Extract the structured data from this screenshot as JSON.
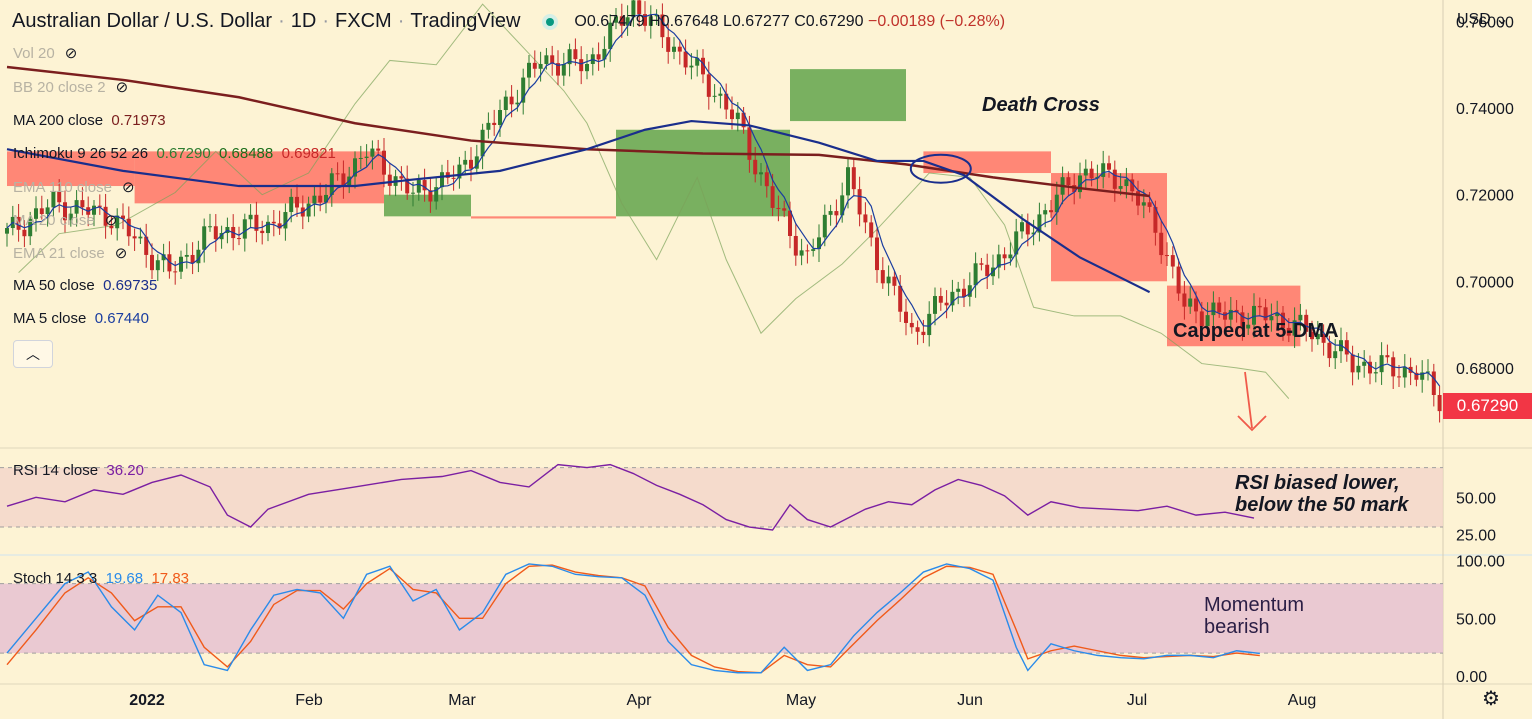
{
  "header": {
    "symbol": "Australian Dollar / U.S. Dollar",
    "interval": "1D",
    "exchange": "FXCM",
    "source": "TradingView",
    "open": "O0.67479",
    "high": "H0.67648",
    "low": "L0.67277",
    "close": "C0.67290",
    "change": "−0.00189 (−0.28%)"
  },
  "currency": "USD",
  "indicators": {
    "vol": {
      "name": "Vol 20"
    },
    "bb": {
      "name": "BB 20 close 2"
    },
    "ma200": {
      "name": "MA 200 close",
      "value": "0.71973"
    },
    "ichimoku": {
      "name": "Ichimoku 9 26 52 26",
      "v1": "0.67290",
      "v2": "0.68488",
      "v3": "0.69821"
    },
    "ema110": {
      "name": "EMA 110 close"
    },
    "ma20": {
      "name": "MA 20 close"
    },
    "ema21": {
      "name": "EMA 21 close"
    },
    "ma50": {
      "name": "MA 50 close",
      "value": "0.69735"
    },
    "ma5": {
      "name": "MA 5 close",
      "value": "0.67440"
    },
    "rsi": {
      "name": "RSI 14 close",
      "value": "36.20"
    },
    "stoch": {
      "name": "Stoch 14 3 3",
      "k": "19.68",
      "d": "17.83"
    }
  },
  "annotations": {
    "death_cross": "Death Cross",
    "capped": "Capped at 5-DMA",
    "rsi_line1": "RSI biased lower,",
    "rsi_line2": "below the 50 mark",
    "mom_line1": "Momentum",
    "mom_line2": "bearish"
  },
  "colors": {
    "background": "#fdf3d4",
    "bull": "#2e7d32",
    "bear": "#c62828",
    "ma200": "#7b1e1e",
    "ma50": "#1a2e8c",
    "ma5": "#1a3da0",
    "cloud_bull": "#4c9a3a",
    "cloud_bear": "#ff6b5e",
    "rsi": "#7b1fa2",
    "stoch_k": "#2a8bea",
    "stoch_d": "#f05a1a",
    "price_label": "#f23645"
  },
  "chart_data": {
    "type": "candlestick",
    "x_labels": [
      "2022",
      "Feb",
      "Mar",
      "Apr",
      "May",
      "Jun",
      "Jul",
      "Aug"
    ],
    "price_axis": {
      "ticks": [
        "0.76000",
        "0.74000",
        "0.72000",
        "0.70000",
        "0.68000"
      ],
      "tick_values": [
        0.76,
        0.74,
        0.72,
        0.7,
        0.68
      ],
      "range": [
        0.6615,
        0.7645
      ]
    },
    "last_price": "0.67290",
    "rsi_axis": {
      "ticks": [
        "50.00",
        "25.00"
      ],
      "tick_values": [
        50,
        25
      ],
      "range": [
        12.5,
        80.5
      ]
    },
    "stoch_axis": {
      "ticks": [
        "100.00",
        "50.00",
        "0.00"
      ],
      "tick_values": [
        100,
        50,
        0
      ],
      "range": [
        -5,
        103
      ]
    },
    "ma_lines": {
      "ma200": [
        [
          0,
          0.7495
        ],
        [
          20,
          0.7465
        ],
        [
          40,
          0.7425
        ],
        [
          60,
          0.7365
        ],
        [
          80,
          0.7325
        ],
        [
          100,
          0.7305
        ],
        [
          120,
          0.7295
        ],
        [
          140,
          0.7292
        ],
        [
          155,
          0.727
        ],
        [
          170,
          0.724
        ],
        [
          185,
          0.7215
        ],
        [
          197,
          0.7197
        ]
      ],
      "ma50": [
        [
          0,
          0.7305
        ],
        [
          20,
          0.7255
        ],
        [
          40,
          0.722
        ],
        [
          60,
          0.722
        ],
        [
          70,
          0.7235
        ],
        [
          85,
          0.7255
        ],
        [
          100,
          0.7305
        ],
        [
          110,
          0.735
        ],
        [
          118,
          0.737
        ],
        [
          128,
          0.736
        ],
        [
          140,
          0.732
        ],
        [
          150,
          0.7278
        ],
        [
          158,
          0.7278
        ],
        [
          165,
          0.7245
        ],
        [
          175,
          0.7145
        ],
        [
          185,
          0.7055
        ],
        [
          197,
          0.6975
        ]
      ]
    },
    "cloud": [
      {
        "x0": 0,
        "x1": 22,
        "top": 0.73,
        "bottom": 0.722,
        "color": "bear"
      },
      {
        "x0": 22,
        "x1": 65,
        "top": 0.73,
        "bottom": 0.718,
        "color": "bear"
      },
      {
        "x0": 65,
        "x1": 80,
        "top": 0.72,
        "bottom": 0.715,
        "color": "bull"
      },
      {
        "x0": 80,
        "x1": 105,
        "top": 0.715,
        "bottom": 0.7145,
        "color": "bear"
      },
      {
        "x0": 105,
        "x1": 135,
        "top": 0.735,
        "bottom": 0.715,
        "color": "bull"
      },
      {
        "x0": 135,
        "x1": 155,
        "top": 0.749,
        "bottom": 0.737,
        "color": "bull"
      },
      {
        "x0": 158,
        "x1": 180,
        "top": 0.73,
        "bottom": 0.725,
        "color": "bear"
      },
      {
        "x0": 180,
        "x1": 200,
        "top": 0.725,
        "bottom": 0.7,
        "color": "bear"
      },
      {
        "x0": 200,
        "x1": 223,
        "top": 0.699,
        "bottom": 0.685,
        "color": "bear"
      }
    ],
    "price_path": [
      [
        0,
        0.711
      ],
      [
        8,
        0.718
      ],
      [
        18,
        0.715
      ],
      [
        28,
        0.702
      ],
      [
        35,
        0.711
      ],
      [
        45,
        0.713
      ],
      [
        55,
        0.7205
      ],
      [
        62,
        0.73
      ],
      [
        70,
        0.72
      ],
      [
        78,
        0.725
      ],
      [
        86,
        0.741
      ],
      [
        92,
        0.751
      ],
      [
        100,
        0.75
      ],
      [
        108,
        0.764
      ],
      [
        115,
        0.754
      ],
      [
        122,
        0.744
      ],
      [
        126,
        0.7365
      ],
      [
        132,
        0.718
      ],
      [
        138,
        0.705
      ],
      [
        145,
        0.724
      ],
      [
        150,
        0.705
      ],
      [
        156,
        0.688
      ],
      [
        162,
        0.696
      ],
      [
        170,
        0.704
      ],
      [
        176,
        0.712
      ],
      [
        185,
        0.725
      ],
      [
        192,
        0.724
      ],
      [
        198,
        0.713
      ],
      [
        203,
        0.694
      ],
      [
        210,
        0.692
      ],
      [
        218,
        0.692
      ],
      [
        225,
        0.688
      ],
      [
        232,
        0.681
      ],
      [
        238,
        0.68
      ],
      [
        243,
        0.679
      ],
      [
        247,
        0.6729
      ]
    ],
    "rsi": [
      [
        0,
        44
      ],
      [
        5,
        50
      ],
      [
        10,
        47
      ],
      [
        15,
        55
      ],
      [
        20,
        52
      ],
      [
        25,
        60
      ],
      [
        30,
        65
      ],
      [
        35,
        57
      ],
      [
        38,
        38
      ],
      [
        42,
        30
      ],
      [
        45,
        42
      ],
      [
        52,
        52
      ],
      [
        60,
        57
      ],
      [
        68,
        62
      ],
      [
        75,
        64
      ],
      [
        80,
        68
      ],
      [
        85,
        60
      ],
      [
        90,
        57
      ],
      [
        95,
        72
      ],
      [
        100,
        70
      ],
      [
        104,
        72
      ],
      [
        108,
        66
      ],
      [
        112,
        58
      ],
      [
        116,
        52
      ],
      [
        120,
        45
      ],
      [
        124,
        35
      ],
      [
        128,
        30
      ],
      [
        132,
        28
      ],
      [
        135,
        45
      ],
      [
        138,
        35
      ],
      [
        142,
        30
      ],
      [
        148,
        42
      ],
      [
        152,
        47
      ],
      [
        156,
        45
      ],
      [
        160,
        55
      ],
      [
        164,
        62
      ],
      [
        168,
        58
      ],
      [
        172,
        51
      ],
      [
        176,
        38
      ],
      [
        180,
        47
      ],
      [
        185,
        43
      ],
      [
        190,
        42
      ],
      [
        195,
        41
      ],
      [
        200,
        44
      ],
      [
        205,
        38
      ],
      [
        210,
        40
      ],
      [
        215,
        36
      ]
    ],
    "stoch_k": [
      [
        0,
        20
      ],
      [
        5,
        50
      ],
      [
        10,
        80
      ],
      [
        14,
        90
      ],
      [
        18,
        60
      ],
      [
        22,
        40
      ],
      [
        26,
        70
      ],
      [
        30,
        55
      ],
      [
        34,
        10
      ],
      [
        38,
        5
      ],
      [
        42,
        40
      ],
      [
        46,
        70
      ],
      [
        50,
        75
      ],
      [
        54,
        72
      ],
      [
        58,
        50
      ],
      [
        62,
        88
      ],
      [
        66,
        95
      ],
      [
        70,
        65
      ],
      [
        74,
        75
      ],
      [
        78,
        40
      ],
      [
        82,
        55
      ],
      [
        86,
        88
      ],
      [
        90,
        97
      ],
      [
        94,
        95
      ],
      [
        98,
        88
      ],
      [
        102,
        86
      ],
      [
        106,
        85
      ],
      [
        110,
        70
      ],
      [
        114,
        30
      ],
      [
        118,
        10
      ],
      [
        122,
        5
      ],
      [
        126,
        3
      ],
      [
        130,
        3
      ],
      [
        134,
        25
      ],
      [
        138,
        5
      ],
      [
        142,
        10
      ],
      [
        146,
        35
      ],
      [
        150,
        55
      ],
      [
        154,
        72
      ],
      [
        158,
        90
      ],
      [
        162,
        97
      ],
      [
        166,
        93
      ],
      [
        170,
        83
      ],
      [
        174,
        25
      ],
      [
        176,
        5
      ],
      [
        180,
        28
      ],
      [
        184,
        22
      ],
      [
        188,
        18
      ],
      [
        192,
        16
      ],
      [
        196,
        15
      ],
      [
        200,
        18
      ],
      [
        204,
        18
      ],
      [
        208,
        16
      ],
      [
        212,
        22
      ],
      [
        216,
        19.68
      ]
    ],
    "stoch_d": [
      [
        0,
        10
      ],
      [
        5,
        40
      ],
      [
        10,
        72
      ],
      [
        14,
        85
      ],
      [
        18,
        72
      ],
      [
        22,
        48
      ],
      [
        26,
        60
      ],
      [
        30,
        60
      ],
      [
        34,
        25
      ],
      [
        38,
        8
      ],
      [
        42,
        30
      ],
      [
        46,
        62
      ],
      [
        50,
        74
      ],
      [
        54,
        74
      ],
      [
        58,
        58
      ],
      [
        62,
        80
      ],
      [
        66,
        93
      ],
      [
        70,
        75
      ],
      [
        74,
        72
      ],
      [
        78,
        50
      ],
      [
        82,
        50
      ],
      [
        86,
        80
      ],
      [
        90,
        95
      ],
      [
        94,
        96
      ],
      [
        98,
        90
      ],
      [
        102,
        87
      ],
      [
        106,
        85
      ],
      [
        110,
        78
      ],
      [
        114,
        42
      ],
      [
        118,
        18
      ],
      [
        122,
        8
      ],
      [
        126,
        4
      ],
      [
        130,
        3
      ],
      [
        134,
        18
      ],
      [
        138,
        10
      ],
      [
        142,
        8
      ],
      [
        146,
        28
      ],
      [
        150,
        48
      ],
      [
        154,
        66
      ],
      [
        158,
        85
      ],
      [
        162,
        95
      ],
      [
        166,
        94
      ],
      [
        170,
        88
      ],
      [
        174,
        40
      ],
      [
        176,
        15
      ],
      [
        180,
        22
      ],
      [
        184,
        26
      ],
      [
        188,
        22
      ],
      [
        192,
        18
      ],
      [
        196,
        16
      ],
      [
        200,
        17
      ],
      [
        204,
        18
      ],
      [
        208,
        17
      ],
      [
        212,
        20
      ],
      [
        216,
        17.83
      ]
    ]
  }
}
